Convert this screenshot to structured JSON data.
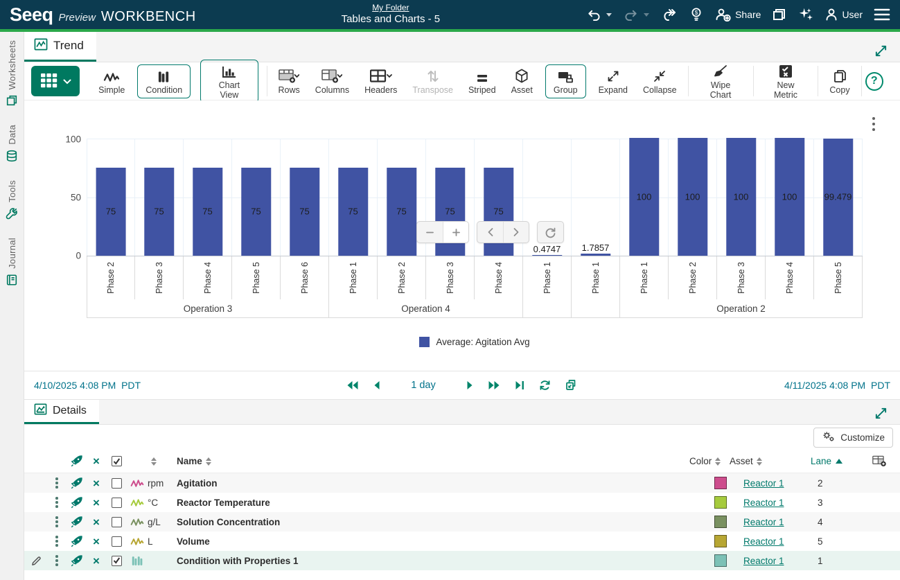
{
  "header": {
    "brand": "Seeq",
    "brand_sub": "Preview",
    "product": "WORKBENCH",
    "breadcrumb": "My Folder",
    "worksheet_title": "Tables and Charts - 5",
    "share_label": "Share",
    "user_label": "User"
  },
  "sidebar": {
    "items": [
      {
        "label": "Worksheets"
      },
      {
        "label": "Data"
      },
      {
        "label": "Tools"
      },
      {
        "label": "Journal"
      }
    ]
  },
  "trend": {
    "tab_label": "Trend",
    "toolbar": {
      "buttons": [
        {
          "label": "Simple"
        },
        {
          "label": "Condition"
        },
        {
          "label": "Chart View"
        },
        {
          "label": "Rows"
        },
        {
          "label": "Columns"
        },
        {
          "label": "Headers"
        },
        {
          "label": "Transpose"
        },
        {
          "label": "Striped"
        },
        {
          "label": "Asset"
        },
        {
          "label": "Group"
        },
        {
          "label": "Expand"
        },
        {
          "label": "Collapse"
        },
        {
          "label": "Wipe Chart"
        },
        {
          "label": "New Metric"
        },
        {
          "label": "Copy"
        }
      ]
    }
  },
  "chart_data": {
    "type": "bar",
    "series_name": "Average: Agitation Avg",
    "bar_color": "#4053a3",
    "ylim": [
      0,
      100
    ],
    "yticks": [
      0,
      50,
      100
    ],
    "grid": true,
    "legend_position": "bottom",
    "x_axis_levels": [
      "Phase",
      "Operation"
    ],
    "groups": [
      {
        "name": "Operation 3",
        "categories": [
          "Phase 2",
          "Phase 3",
          "Phase 4",
          "Phase 5",
          "Phase 6"
        ],
        "values": [
          75,
          75,
          75,
          75,
          75
        ],
        "labels": [
          "75",
          "75",
          "75",
          "75",
          "75"
        ]
      },
      {
        "name": "Operation 4",
        "categories": [
          "Phase 1",
          "Phase 2",
          "Phase 3",
          "Phase 4"
        ],
        "values": [
          75,
          75,
          75,
          75
        ],
        "labels": [
          "75",
          "75",
          "75",
          "75"
        ]
      },
      {
        "name": "",
        "categories": [
          "Phase 1"
        ],
        "values": [
          0.4747
        ],
        "labels": [
          "0.4747"
        ]
      },
      {
        "name": "",
        "categories": [
          "Phase 1"
        ],
        "values": [
          1.7857
        ],
        "labels": [
          "1.7857"
        ]
      },
      {
        "name": "Operation 2",
        "categories": [
          "Phase 1",
          "Phase 2",
          "Phase 3",
          "Phase 4",
          "Phase 5"
        ],
        "values": [
          100,
          100,
          100,
          100,
          99.479
        ],
        "labels": [
          "100",
          "100",
          "100",
          "100",
          "99.479"
        ]
      }
    ]
  },
  "timebar": {
    "start": "4/10/2025 4:08 PM",
    "start_tz": "PDT",
    "duration": "1 day",
    "end": "4/11/2025 4:08 PM",
    "end_tz": "PDT"
  },
  "details": {
    "tab_label": "Details",
    "customize_label": "Customize",
    "columns": {
      "name": "Name",
      "color": "Color",
      "asset": "Asset",
      "lane": "Lane"
    },
    "rows": [
      {
        "type": "signal",
        "unit": "rpm",
        "name": "Agitation",
        "color": "#cd4d8d",
        "asset": "Reactor 1",
        "lane": "2",
        "selected": false
      },
      {
        "type": "signal",
        "unit": "°C",
        "name": "Reactor Temperature",
        "color": "#a6cb3d",
        "asset": "Reactor 1",
        "lane": "3",
        "selected": false
      },
      {
        "type": "signal",
        "unit": "g/L",
        "name": "Solution Concentration",
        "color": "#7a9161",
        "asset": "Reactor 1",
        "lane": "4",
        "selected": false
      },
      {
        "type": "signal",
        "unit": "L",
        "name": "Volume",
        "color": "#b7a633",
        "asset": "Reactor 1",
        "lane": "5",
        "selected": false
      },
      {
        "type": "condition",
        "unit": "",
        "name": "Condition with Properties 1",
        "color": "#7cc1b6",
        "asset": "Reactor 1",
        "lane": "1",
        "selected": true
      }
    ]
  },
  "colors": {
    "accent": "#007960",
    "header_bg": "#0c3b50",
    "green_bar": "#2ba84a",
    "bar": "#4053a3",
    "selected_row": "#e9f4f0"
  }
}
